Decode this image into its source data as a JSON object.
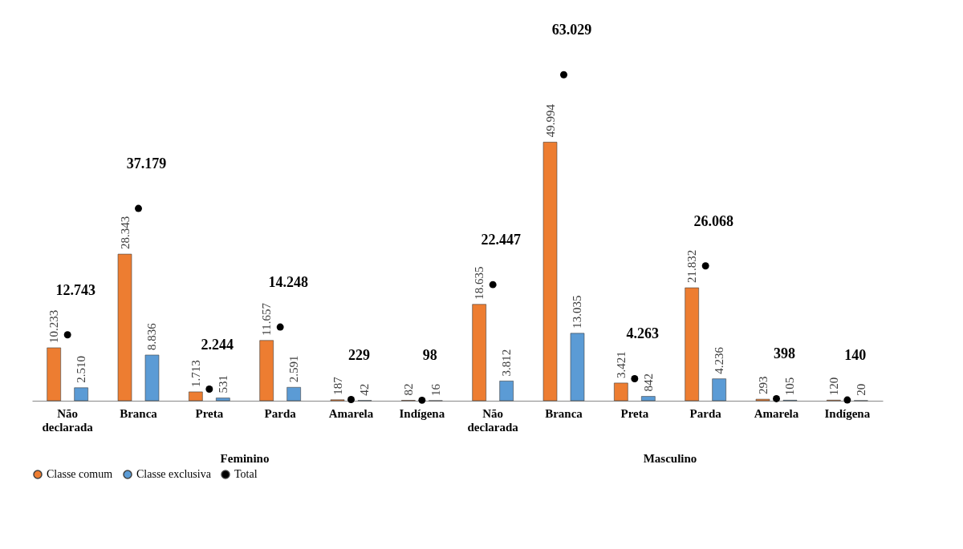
{
  "chart_data": {
    "type": "bar",
    "categories": [
      "Não declarada",
      "Branca",
      "Preta",
      "Parda",
      "Amarela",
      "Indígena",
      "Não declarada",
      "Branca",
      "Preta",
      "Parda",
      "Amarela",
      "Indígena"
    ],
    "annotations": [
      "Feminino",
      "Masculino"
    ],
    "legend": "bottom",
    "grid": false,
    "series": [
      {
        "name": "Classe comum",
        "color": "#ed7d31",
        "values": [
          10233,
          28343,
          1713,
          11657,
          187,
          82,
          18635,
          49994,
          3421,
          21832,
          293,
          120
        ],
        "value_labels": [
          "10.233",
          "28.343",
          "1.713",
          "11.657",
          "187",
          "82",
          "18.635",
          "49.994",
          "3.421",
          "21.832",
          "293",
          "120"
        ]
      },
      {
        "name": "Classe exclusiva",
        "color": "#5b9bd5",
        "values": [
          2510,
          8836,
          531,
          2591,
          42,
          16,
          3812,
          13035,
          842,
          4236,
          105,
          20
        ],
        "value_labels": [
          "2.510",
          "8.836",
          "531",
          "2.591",
          "42",
          "16",
          "3.812",
          "13.035",
          "842",
          "4.236",
          "105",
          "20"
        ]
      },
      {
        "name": "Total",
        "type": "scatter",
        "marker": "circle",
        "color": "#000000",
        "values": [
          12743,
          37179,
          2244,
          14248,
          229,
          98,
          22447,
          63029,
          4263,
          26068,
          398,
          140
        ],
        "value_labels": [
          "12.743",
          "37.179",
          "2.244",
          "14.248",
          "229",
          "98",
          "22.447",
          "63.029",
          "4.263",
          "26.068",
          "398",
          "140"
        ]
      }
    ]
  }
}
